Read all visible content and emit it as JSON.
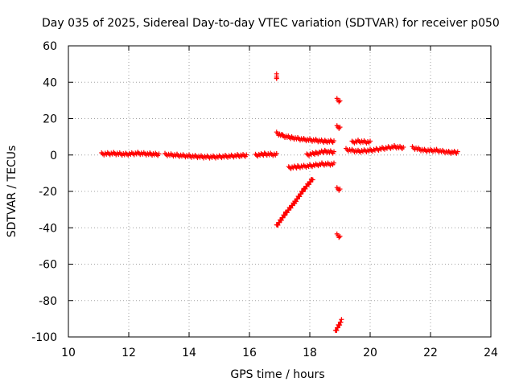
{
  "chart_data": {
    "type": "scatter",
    "title": "Day 035 of 2025, Sidereal Day-to-day VTEC variation (SDTVAR) for receiver p050",
    "xlabel": "GPS time / hours",
    "ylabel": "SDTVAR / TECUs",
    "xlim": [
      10,
      24
    ],
    "ylim": [
      -100,
      60
    ],
    "xticks": [
      "10",
      "12",
      "14",
      "16",
      "18",
      "20",
      "22",
      "24"
    ],
    "yticks": [
      "-100",
      "-80",
      "-60",
      "-40",
      "-20",
      "0",
      "20",
      "40",
      "60"
    ],
    "grid": true,
    "marker": "plus",
    "colors": {
      "points": "#ff0000",
      "axis": "#000000",
      "grid": "#a0a0a0"
    },
    "segments": [
      {
        "x": [
          11.1,
          11.5,
          11.9,
          12.3,
          12.7,
          13.0
        ],
        "y": [
          0.6,
          0.8,
          0.4,
          0.9,
          0.5,
          0.3
        ]
      },
      {
        "x": [
          13.2,
          13.6,
          14.0,
          14.4,
          14.8,
          15.2,
          15.6,
          15.9
        ],
        "y": [
          0.3,
          -0.2,
          -0.6,
          -1.0,
          -1.1,
          -0.8,
          -0.4,
          -0.2
        ]
      },
      {
        "x": [
          16.2,
          16.5,
          16.9
        ],
        "y": [
          -0.2,
          0.5,
          0.2
        ]
      },
      {
        "x": [
          16.9,
          17.1,
          17.4,
          17.8,
          18.2,
          18.5,
          18.8
        ],
        "y": [
          12.0,
          10.5,
          9.5,
          8.5,
          8.0,
          7.5,
          7.5
        ]
      },
      {
        "x": [
          17.3,
          17.6,
          18.0,
          18.4,
          18.8
        ],
        "y": [
          -7.0,
          -6.5,
          -6.0,
          -5.0,
          -5.0
        ]
      },
      {
        "x": [
          17.9,
          18.2,
          18.5,
          18.8
        ],
        "y": [
          0.0,
          1.0,
          2.0,
          1.5
        ]
      },
      {
        "x": [
          16.9,
          17.2,
          17.5,
          17.8,
          18.1
        ],
        "y": [
          -39.0,
          -32.0,
          -26.0,
          -19.0,
          -13.0
        ]
      },
      {
        "x": [
          16.9,
          16.9
        ],
        "y": [
          44.0,
          42.0
        ]
      },
      {
        "x": [
          18.9,
          19.0
        ],
        "y": [
          30.5,
          29.5
        ]
      },
      {
        "x": [
          18.9,
          19.0
        ],
        "y": [
          15.5,
          15.0
        ]
      },
      {
        "x": [
          18.9,
          19.0
        ],
        "y": [
          -18.5,
          -19.0
        ]
      },
      {
        "x": [
          18.9,
          19.0
        ],
        "y": [
          -44.0,
          -45.0
        ]
      },
      {
        "x": [
          18.85,
          18.95,
          19.05
        ],
        "y": [
          -97.0,
          -94.0,
          -91.0
        ]
      },
      {
        "x": [
          19.2,
          19.6,
          20.0,
          20.4,
          20.8,
          21.1
        ],
        "y": [
          3.0,
          2.0,
          2.5,
          3.5,
          4.5,
          4.0
        ]
      },
      {
        "x": [
          19.4,
          19.6,
          20.0
        ],
        "y": [
          7.0,
          7.5,
          7.0
        ]
      },
      {
        "x": [
          21.4,
          21.8,
          22.2,
          22.6,
          22.9
        ],
        "y": [
          4.0,
          2.5,
          2.5,
          1.5,
          1.5
        ]
      }
    ]
  }
}
